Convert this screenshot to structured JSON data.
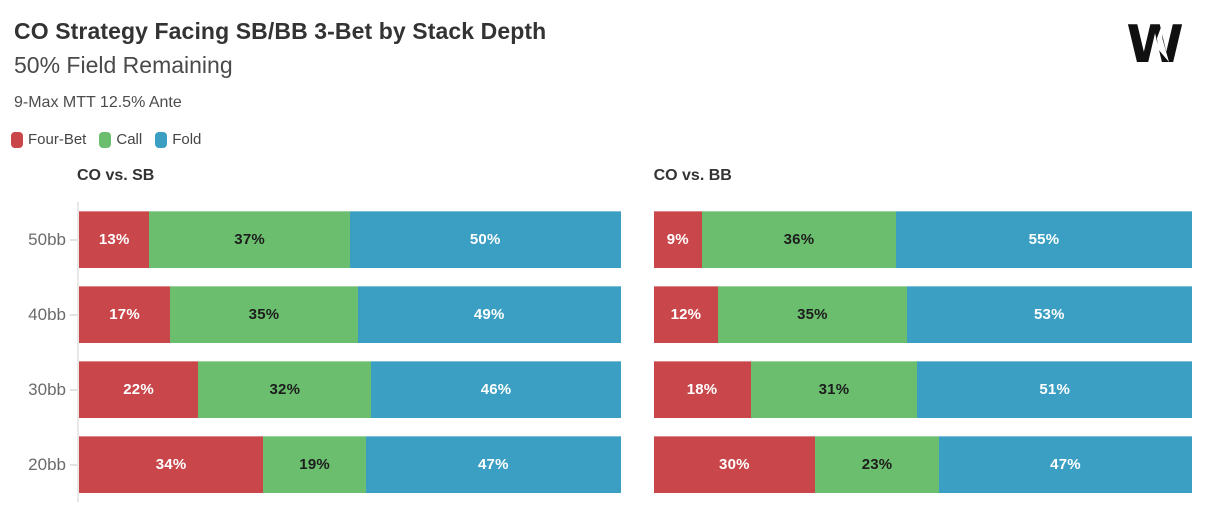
{
  "header": {
    "title": "CO Strategy Facing SB/BB 3-Bet by Stack Depth",
    "subtitle": "50% Field Remaining",
    "context": "9-Max MTT 12.5% Ante",
    "logo_glyph": "W"
  },
  "colors": {
    "four_bet": "#c9474b",
    "call": "#6abe6e",
    "fold": "#3a9fc2",
    "axis": "#e8e8e8",
    "category_label": "#6b6b6b"
  },
  "legend": [
    {
      "label": "Four-Bet",
      "color": "#c9474b"
    },
    {
      "label": "Call",
      "color": "#6abe6e"
    },
    {
      "label": "Fold",
      "color": "#3a9fc2"
    }
  ],
  "chart_data": [
    {
      "type": "bar",
      "orientation": "horizontal",
      "stacked": true,
      "title": "CO vs. SB",
      "categories": [
        "50bb",
        "40bb",
        "30bb",
        "20bb"
      ],
      "category_labels_visible": true,
      "axis_line_visible": true,
      "xlim": [
        0,
        100
      ],
      "unit": "%",
      "series": [
        {
          "name": "Four-Bet",
          "color": "#c9474b",
          "label_color": "#ffffff",
          "values": [
            13,
            17,
            22,
            34
          ]
        },
        {
          "name": "Call",
          "color": "#6abe6e",
          "label_color": "#1d1d1d",
          "values": [
            37,
            35,
            32,
            19
          ]
        },
        {
          "name": "Fold",
          "color": "#3a9fc2",
          "label_color": "#ffffff",
          "values": [
            50,
            49,
            46,
            47
          ]
        }
      ]
    },
    {
      "type": "bar",
      "orientation": "horizontal",
      "stacked": true,
      "title": "CO vs. BB",
      "categories": [
        "50bb",
        "40bb",
        "30bb",
        "20bb"
      ],
      "category_labels_visible": false,
      "axis_line_visible": false,
      "xlim": [
        0,
        100
      ],
      "unit": "%",
      "series": [
        {
          "name": "Four-Bet",
          "color": "#c9474b",
          "label_color": "#ffffff",
          "values": [
            9,
            12,
            18,
            30
          ]
        },
        {
          "name": "Call",
          "color": "#6abe6e",
          "label_color": "#1d1d1d",
          "values": [
            36,
            35,
            31,
            23
          ]
        },
        {
          "name": "Fold",
          "color": "#3a9fc2",
          "label_color": "#ffffff",
          "values": [
            55,
            53,
            51,
            47
          ]
        }
      ]
    }
  ]
}
